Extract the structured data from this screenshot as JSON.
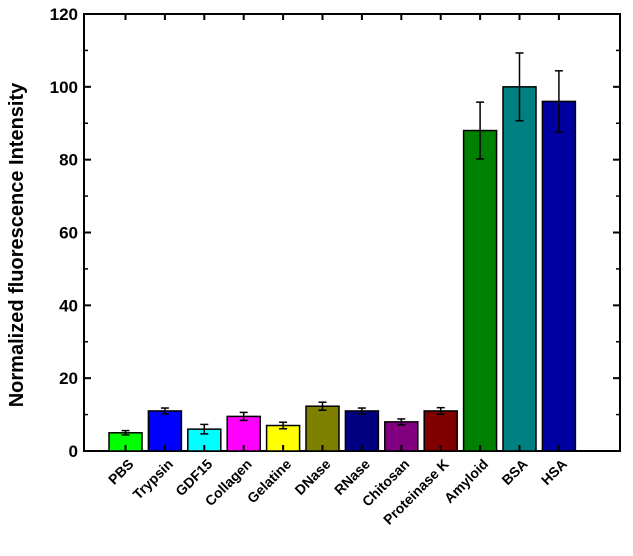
{
  "chart_data": {
    "type": "bar",
    "title": "",
    "xlabel": "",
    "ylabel": "Normalized fluorescence Intensity",
    "ylim": [
      0,
      120
    ],
    "yticks": [
      0,
      20,
      40,
      60,
      80,
      100,
      120
    ],
    "grid": false,
    "categories": [
      "PBS",
      "Trypsin",
      "GDF15",
      "Collagen",
      "Gelatine",
      "DNase",
      "RNase",
      "Chitosan",
      "Proteinase K",
      "Amyloid",
      "BSA",
      "HSA"
    ],
    "values": [
      5,
      11,
      6,
      9.5,
      7,
      12.3,
      11,
      8,
      11,
      88,
      100,
      96
    ],
    "errors": [
      0.6,
      0.8,
      1.3,
      1.1,
      0.9,
      1.1,
      0.8,
      0.8,
      0.9,
      7.8,
      9.3,
      8.4
    ],
    "colors": [
      "#00ff00",
      "#0000ff",
      "#00ffff",
      "#ff00ff",
      "#ffff00",
      "#808000",
      "#000080",
      "#800080",
      "#800000",
      "#008000",
      "#008080",
      "#0000a0"
    ]
  }
}
